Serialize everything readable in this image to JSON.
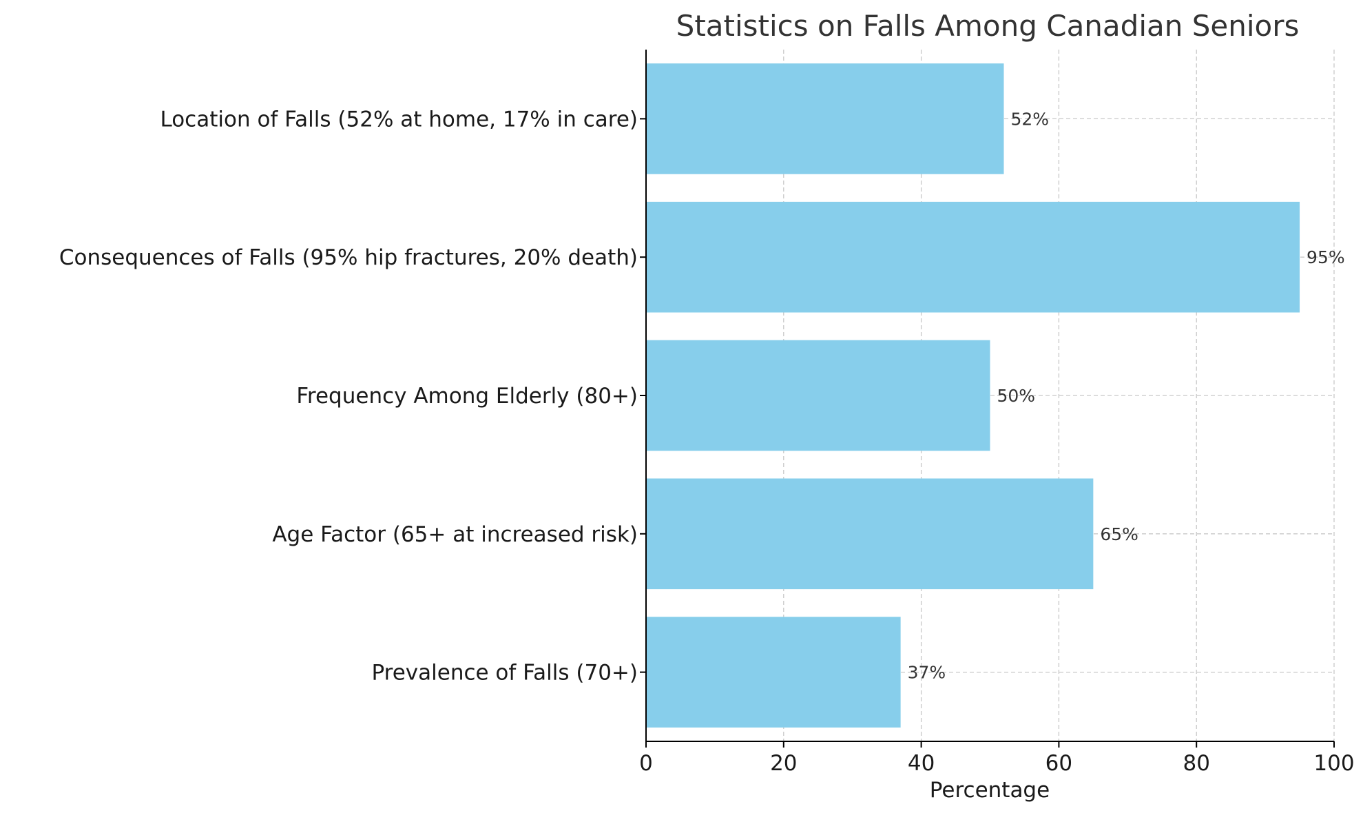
{
  "chart_data": {
    "type": "bar",
    "orientation": "horizontal",
    "title": "Statistics on Falls Among Canadian Seniors",
    "xlabel": "Percentage",
    "ylabel": "",
    "categories": [
      "Prevalence of Falls (70+)",
      "Age Factor (65+ at increased risk)",
      "Frequency Among Elderly (80+)",
      "Consequences of Falls (95% hip fractures, 20% death)",
      "Location of Falls (52% at home, 17% in care)"
    ],
    "values": [
      37,
      65,
      50,
      95,
      52
    ],
    "data_labels": [
      "37%",
      "65%",
      "50%",
      "95%",
      "52%"
    ],
    "xlim": [
      0,
      100
    ],
    "xticks": [
      0,
      20,
      40,
      60,
      80,
      100
    ],
    "grid": true,
    "colors": {
      "bar": "#87ceeb"
    }
  }
}
